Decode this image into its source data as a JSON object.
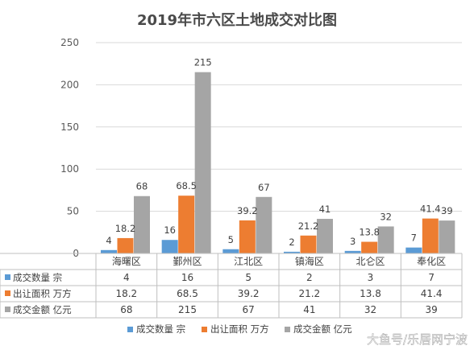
{
  "chart_data": {
    "type": "bar",
    "title": "2019年市六区土地成交对比图",
    "categories": [
      "海曙区",
      "鄞州区",
      "江北区",
      "镇海区",
      "北仑区",
      "奉化区"
    ],
    "series": [
      {
        "name": "成交数量 宗",
        "color": "#5b9bd5",
        "values": [
          4,
          16,
          5,
          2,
          3,
          7
        ],
        "labels": [
          "4",
          "16",
          "5",
          "2",
          "3",
          "7"
        ]
      },
      {
        "name": "出让面积 万方",
        "color": "#ed7d31",
        "values": [
          18.2,
          68.5,
          39.2,
          21.2,
          13.8,
          41.4
        ],
        "labels": [
          "18.2",
          "68.5",
          "39.2",
          "21.2",
          "13.8",
          "41.4"
        ]
      },
      {
        "name": "成交金额 亿元",
        "color": "#a5a5a5",
        "values": [
          68,
          215,
          67,
          41,
          32,
          39
        ],
        "labels": [
          "68",
          "215",
          "67",
          "41",
          "32",
          "39"
        ]
      }
    ],
    "yticks": [
      "0",
      "50",
      "100",
      "150",
      "200",
      "250"
    ],
    "ylim": [
      0,
      250
    ],
    "grid": true,
    "legend": "bottom"
  },
  "watermark": "大鱼号/乐居网宁波"
}
